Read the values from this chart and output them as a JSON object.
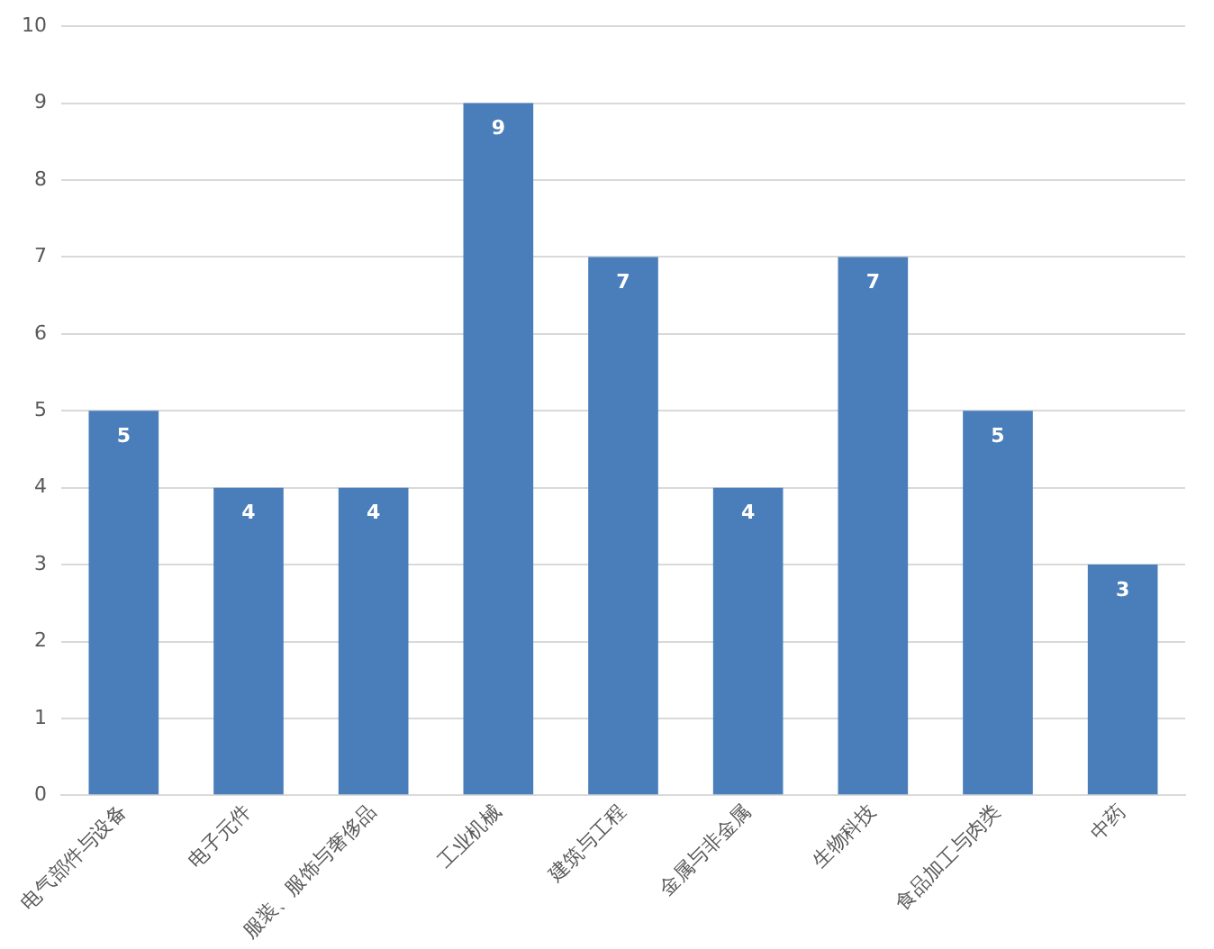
{
  "chart_data": {
    "type": "bar",
    "categories": [
      "电气部件与设备",
      "电子元件",
      "服装、服饰与奢侈品",
      "工业机械",
      "建筑与工程",
      "金属与非金属",
      "生物科技",
      "食品加工与肉类",
      "中药"
    ],
    "values": [
      5,
      4,
      4,
      9,
      7,
      4,
      7,
      5,
      3
    ],
    "color": "#4a7ebb",
    "ylim": [
      0,
      10
    ],
    "yticks": [
      0,
      1,
      2,
      3,
      4,
      5,
      6,
      7,
      8,
      9,
      10
    ],
    "grid": "y",
    "data_labels": true
  }
}
